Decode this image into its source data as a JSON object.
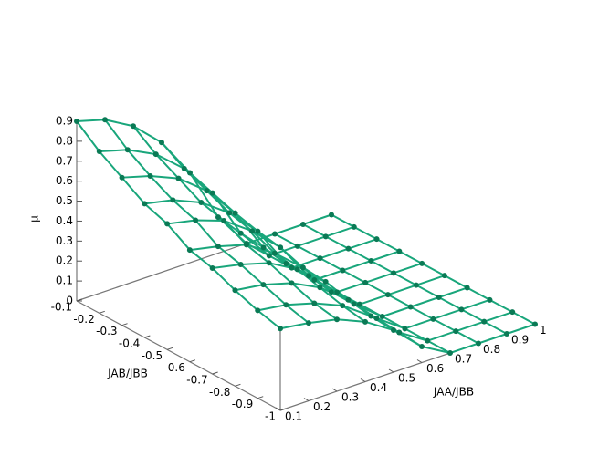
{
  "chart_data": {
    "type": "surface",
    "xlabel": "JAA/JBB",
    "ylabel": "JAB/JBB",
    "zlabel": "μ",
    "x": [
      0.1,
      0.2,
      0.3,
      0.4,
      0.5,
      0.6,
      0.7,
      0.8,
      0.9,
      1
    ],
    "y": [
      -0.1,
      -0.2,
      -0.3,
      -0.4,
      -0.5,
      -0.6,
      -0.7,
      -0.8,
      -0.9,
      -1
    ],
    "z": [
      [
        0.9,
        0.86,
        0.78,
        0.65,
        0.45,
        0.18,
        0,
        0,
        0,
        0
      ],
      [
        0.81,
        0.77,
        0.7,
        0.58,
        0.41,
        0.16,
        0,
        0,
        0,
        0
      ],
      [
        0.74,
        0.7,
        0.64,
        0.53,
        0.37,
        0.15,
        0,
        0,
        0,
        0
      ],
      [
        0.67,
        0.64,
        0.58,
        0.48,
        0.34,
        0.13,
        0,
        0,
        0,
        0
      ],
      [
        0.63,
        0.6,
        0.55,
        0.45,
        0.32,
        0.13,
        0,
        0,
        0,
        0
      ],
      [
        0.56,
        0.53,
        0.49,
        0.4,
        0.28,
        0.11,
        0,
        0,
        0,
        0
      ],
      [
        0.53,
        0.5,
        0.46,
        0.38,
        0.27,
        0.11,
        0,
        0,
        0,
        0
      ],
      [
        0.48,
        0.46,
        0.42,
        0.35,
        0.24,
        0.1,
        0,
        0,
        0,
        0
      ],
      [
        0.44,
        0.42,
        0.38,
        0.32,
        0.22,
        0.09,
        0,
        0,
        0,
        0
      ],
      [
        0.41,
        0.39,
        0.36,
        0.3,
        0.21,
        0.08,
        0,
        0,
        0,
        0
      ]
    ],
    "color": "#19a67b",
    "point_color": "#0a7a55",
    "xlim": [
      0.1,
      1
    ],
    "ylim": [
      -0.1,
      -1
    ],
    "zlim": [
      0,
      0.9
    ],
    "xticks": [
      0.1,
      0.2,
      0.3,
      0.4,
      0.5,
      0.6,
      0.7,
      0.8,
      0.9,
      1
    ],
    "yticks": [
      -0.1,
      -0.2,
      -0.3,
      -0.4,
      -0.5,
      -0.6,
      -0.7,
      -0.8,
      -0.9,
      -1
    ],
    "zticks": [
      0,
      0.1,
      0.2,
      0.3,
      0.4,
      0.5,
      0.6,
      0.7,
      0.8,
      0.9
    ]
  }
}
